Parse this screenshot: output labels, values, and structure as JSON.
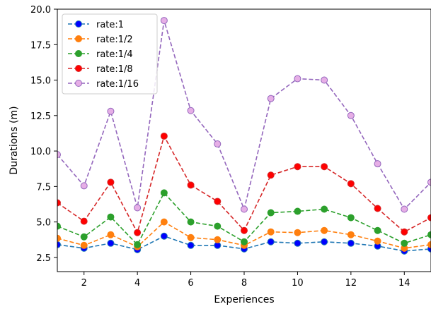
{
  "chart_data": {
    "type": "line",
    "xlabel": "Experiences",
    "ylabel": "Durations (m)",
    "xlim": [
      1,
      15
    ],
    "ylim": [
      1.5,
      20.0
    ],
    "xticks": [
      2,
      4,
      6,
      8,
      10,
      12,
      14
    ],
    "yticks": [
      2.5,
      5.0,
      7.5,
      10.0,
      12.5,
      15.0,
      17.5,
      20.0
    ],
    "xtick_labels": [
      "2",
      "4",
      "6",
      "8",
      "10",
      "12",
      "14"
    ],
    "ytick_labels": [
      "2.5",
      "5.0",
      "7.5",
      "10.0",
      "12.5",
      "15.0",
      "17.5",
      "20.0"
    ],
    "grid": false,
    "legend_position": "top-left",
    "x": [
      1,
      2,
      3,
      4,
      5,
      6,
      7,
      8,
      9,
      10,
      11,
      12,
      13,
      14,
      15
    ],
    "series": [
      {
        "name": "rate:1",
        "color": "#1f77b4",
        "marker_color": "#0000ff",
        "values": [
          3.4,
          3.15,
          3.5,
          3.05,
          4.0,
          3.35,
          3.35,
          3.1,
          3.6,
          3.5,
          3.6,
          3.5,
          3.3,
          2.95,
          3.1
        ]
      },
      {
        "name": "rate:1/2",
        "color": "#ff7f0e",
        "marker_color": "#ff7f0e",
        "values": [
          3.85,
          3.35,
          4.1,
          3.25,
          5.0,
          3.9,
          3.75,
          3.35,
          4.3,
          4.25,
          4.4,
          4.1,
          3.65,
          3.15,
          3.4
        ]
      },
      {
        "name": "rate:1/4",
        "color": "#2ca02c",
        "marker_color": "#2ca02c",
        "values": [
          4.7,
          3.95,
          5.35,
          3.4,
          7.05,
          5.0,
          4.7,
          3.6,
          5.65,
          5.75,
          5.9,
          5.3,
          4.4,
          3.5,
          4.1
        ]
      },
      {
        "name": "rate:1/8",
        "color": "#d62728",
        "marker_color": "#ff0000",
        "values": [
          6.35,
          5.05,
          7.8,
          4.25,
          11.05,
          7.6,
          6.45,
          4.4,
          8.3,
          8.9,
          8.9,
          7.7,
          5.95,
          4.3,
          5.3
        ]
      },
      {
        "name": "rate:1/16",
        "color": "#9467bd",
        "marker_color": "#e6aee6",
        "values": [
          9.75,
          7.55,
          12.8,
          6.0,
          19.2,
          12.85,
          10.5,
          5.9,
          13.7,
          15.1,
          15.0,
          12.5,
          9.1,
          5.9,
          7.8
        ]
      }
    ]
  }
}
